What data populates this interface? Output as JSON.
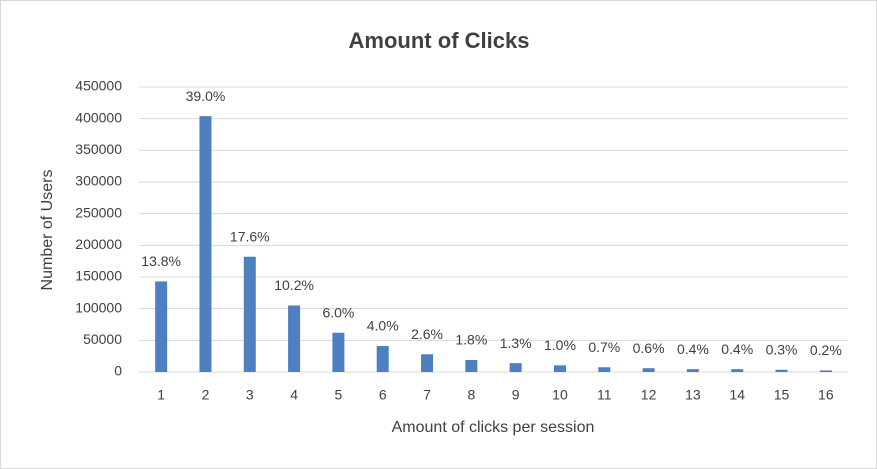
{
  "chart_data": {
    "type": "bar",
    "title": "Amount of Clicks",
    "x_label": "Amount of clicks per session",
    "y_label": "Number of Users",
    "categories": [
      "1",
      "2",
      "3",
      "4",
      "5",
      "6",
      "7",
      "8",
      "9",
      "10",
      "11",
      "12",
      "13",
      "14",
      "15",
      "16"
    ],
    "values": [
      143000,
      404000,
      182000,
      105000,
      62000,
      41000,
      28000,
      19000,
      14000,
      10500,
      7500,
      6000,
      4500,
      4500,
      3500,
      2500
    ],
    "percent_labels": [
      "13.8%",
      "39.0%",
      "17.6%",
      "10.2%",
      "6.0%",
      "4.0%",
      "2.6%",
      "1.8%",
      "1.3%",
      "1.0%",
      "0.7%",
      "0.6%",
      "0.4%",
      "0.4%",
      "0.3%",
      "0.2%"
    ],
    "color": "#4e7fc0",
    "ylim": [
      0,
      450000
    ],
    "yticks": [
      0,
      50000,
      100000,
      150000,
      200000,
      250000,
      300000,
      350000,
      400000,
      450000
    ],
    "grid": true
  }
}
